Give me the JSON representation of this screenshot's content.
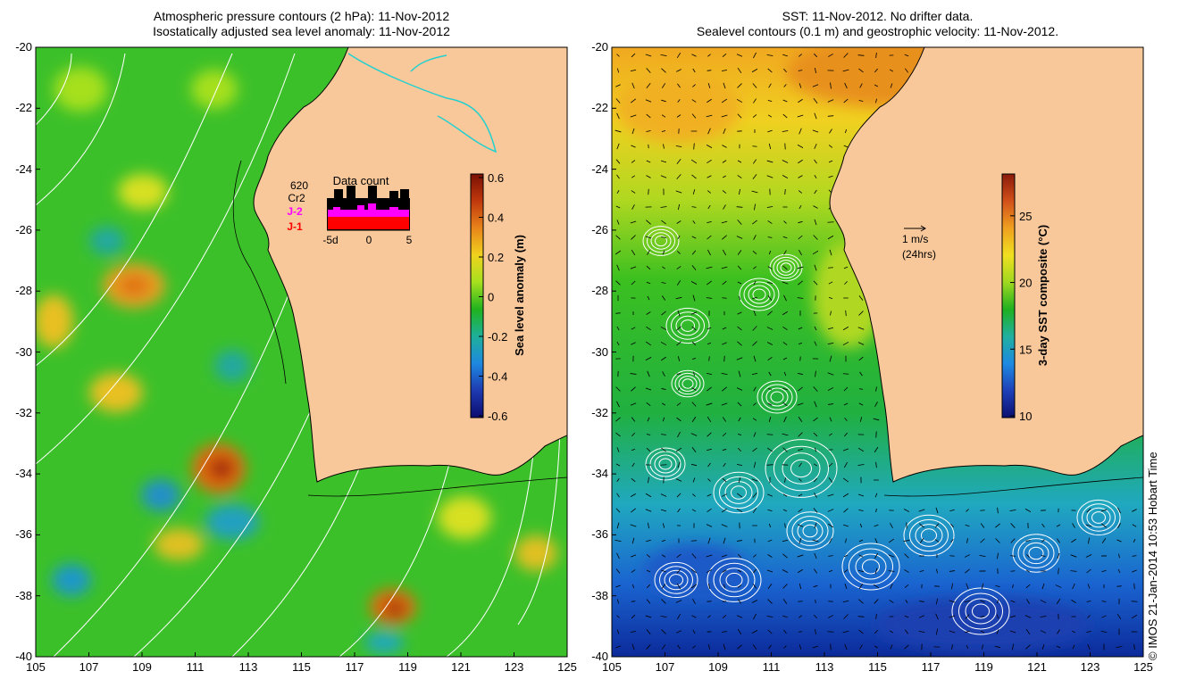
{
  "left_panel": {
    "title_line1": "Atmospheric pressure contours (2 hPa): 11-Nov-2012",
    "title_line2": "Isostatically adjusted sea level anomaly: 11-Nov-2012",
    "colorbar": {
      "label": "Sea level anomaly (m)",
      "ticks": [
        "0.6",
        "0.4",
        "0.2",
        "0",
        "-0.2",
        "-0.4",
        "-0.6"
      ],
      "colors": [
        "#7a1005",
        "#c0380c",
        "#e8841a",
        "#f0d21e",
        "#a6e01e",
        "#20b21e",
        "#1eb09a",
        "#1e88e0",
        "#1e3ab0",
        "#0c0c70"
      ]
    },
    "data_count": {
      "title": "Data count",
      "total_label": "620",
      "row_labels": [
        "Cr2",
        "J-2",
        "J-1"
      ],
      "row_colors": [
        "#000000",
        "#ff00ff",
        "#ff0000"
      ],
      "x_ticks": [
        "-5d",
        "0",
        "5"
      ]
    }
  },
  "right_panel": {
    "title_line1": "SST: 11-Nov-2012. No drifter data.",
    "title_line2": "Sealevel contours (0.1 m) and geostrophic velocity: 11-Nov-2012.",
    "scale_label": "1 m/s",
    "scale_sub": "(24hrs)",
    "colorbar": {
      "label": "3-day SST composite (°C)",
      "ticks": [
        "25",
        "20",
        "15",
        "10"
      ],
      "colors": [
        "#8a1a0a",
        "#d2501a",
        "#f0a020",
        "#f0e020",
        "#a0d820",
        "#20b020",
        "#20b0a0",
        "#1e8ae0",
        "#1e40b8",
        "#0c1070"
      ]
    }
  },
  "axes": {
    "lat_ticks": [
      "-20",
      "-22",
      "-24",
      "-26",
      "-28",
      "-30",
      "-32",
      "-34",
      "-36",
      "-38",
      "-40"
    ],
    "lon_ticks": [
      "105",
      "107",
      "109",
      "111",
      "113",
      "115",
      "117",
      "119",
      "121",
      "123",
      "125"
    ]
  },
  "credit": "© IMOS 21-Jan-2014 10:53 Hobart Time",
  "colors": {
    "land": "#f9c89a",
    "coast": "#000000",
    "contour": "#ffffff",
    "river": "#22d0d0"
  }
}
